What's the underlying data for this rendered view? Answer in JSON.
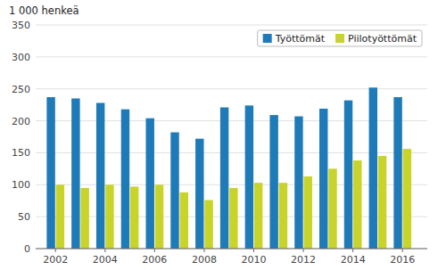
{
  "chart_data": {
    "type": "bar",
    "y_label": "1 000 henkeä",
    "x": [
      2002,
      2003,
      2004,
      2005,
      2006,
      2007,
      2008,
      2009,
      2010,
      2011,
      2012,
      2013,
      2014,
      2015,
      2016
    ],
    "xlim": [
      2001.2,
      2017.0
    ],
    "xticks": [
      2002,
      2004,
      2006,
      2008,
      2010,
      2012,
      2014,
      2016
    ],
    "ylim": [
      0,
      350
    ],
    "yticks": [
      0,
      50,
      100,
      150,
      200,
      250,
      300,
      350
    ],
    "grid": true,
    "legend": "upper-right",
    "series": [
      {
        "name": "Työttömät",
        "color": "#1f7bb8",
        "values": [
          237,
          235,
          228,
          218,
          204,
          182,
          172,
          221,
          224,
          209,
          207,
          219,
          232,
          252,
          237
        ]
      },
      {
        "name": "Piilotyöttömät",
        "color": "#c8d42a",
        "values": [
          100,
          95,
          100,
          97,
          100,
          88,
          76,
          95,
          103,
          103,
          113,
          125,
          138,
          145,
          156
        ]
      }
    ]
  }
}
